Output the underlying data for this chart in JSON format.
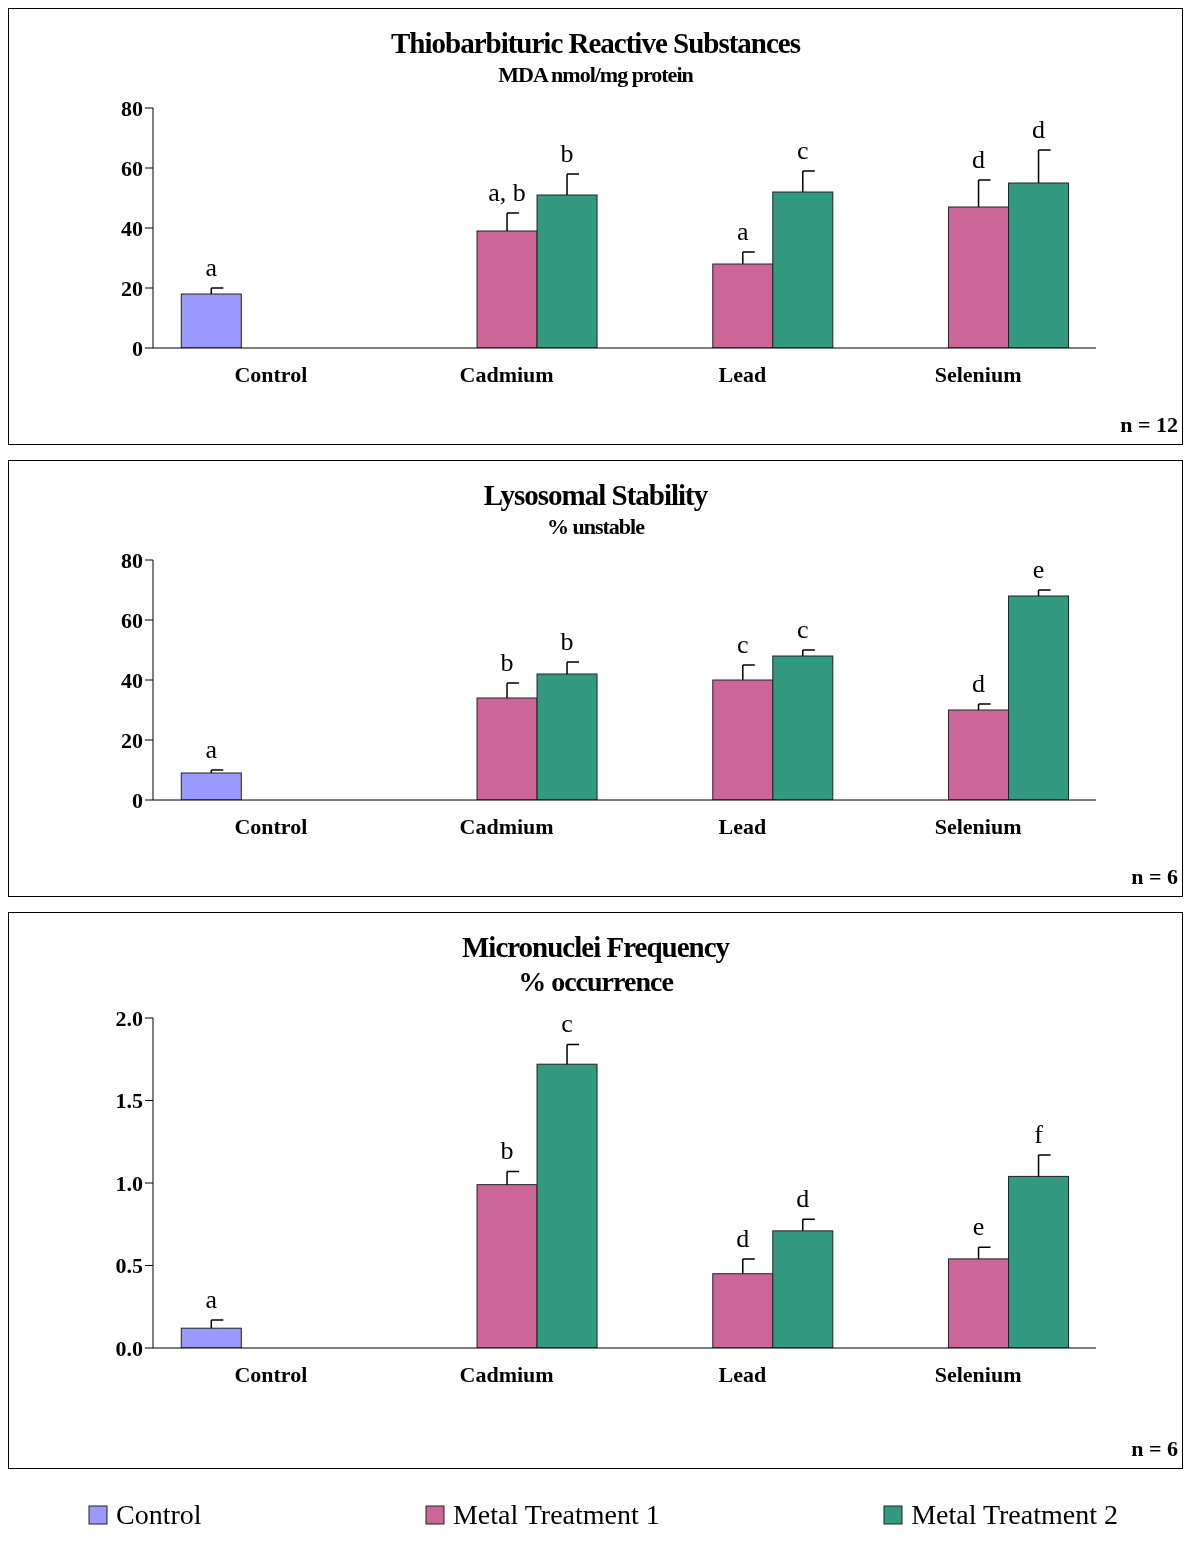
{
  "chart_data": [
    {
      "type": "bar",
      "title": "Thiobarbituric Reactive Substances",
      "subtitle": "MDA nmol/mg protein",
      "categories": [
        "Control",
        "Cadmium",
        "Lead",
        "Selenium"
      ],
      "ylim": [
        0,
        80
      ],
      "yticks": [
        0,
        20,
        40,
        60,
        80
      ],
      "annotations": [
        "n = 12"
      ],
      "series": [
        {
          "color": "#9999ff",
          "values": [
            18,
            0,
            0,
            0
          ],
          "errors": [
            [
              18,
              20
            ],
            null,
            null,
            null
          ],
          "value_labels": [
            "a",
            null,
            null,
            null
          ]
        },
        {
          "color": "#cc6699",
          "values": [
            0,
            39,
            28,
            47
          ],
          "errors": [
            null,
            [
              39,
              45
            ],
            [
              28,
              32
            ],
            [
              47,
              56
            ]
          ],
          "value_labels": [
            null,
            "a, b",
            "a",
            "d"
          ]
        },
        {
          "color": "#339980",
          "values": [
            0,
            51,
            52,
            55
          ],
          "errors": [
            null,
            [
              51,
              58
            ],
            [
              52,
              59
            ],
            [
              55,
              66
            ]
          ],
          "value_labels": [
            null,
            "b",
            "c",
            "d"
          ]
        }
      ]
    },
    {
      "type": "bar",
      "title": "Lysosomal Stability",
      "subtitle": "% unstable",
      "categories": [
        "Control",
        "Cadmium",
        "Lead",
        "Selenium"
      ],
      "ylim": [
        0,
        80
      ],
      "yticks": [
        0,
        20,
        40,
        60,
        80
      ],
      "annotations": [
        "n = 6"
      ],
      "series": [
        {
          "color": "#9999ff",
          "values": [
            9,
            0,
            0,
            0
          ],
          "errors": [
            [
              9,
              10
            ],
            null,
            null,
            null
          ],
          "value_labels": [
            "a",
            null,
            null,
            null
          ]
        },
        {
          "color": "#cc6699",
          "values": [
            0,
            34,
            40,
            30
          ],
          "errors": [
            null,
            [
              34,
              39
            ],
            [
              40,
              45
            ],
            [
              30,
              32
            ]
          ],
          "value_labels": [
            null,
            "b",
            "c",
            "d"
          ]
        },
        {
          "color": "#339980",
          "values": [
            0,
            42,
            48,
            68
          ],
          "errors": [
            null,
            [
              42,
              46
            ],
            [
              48,
              50
            ],
            [
              68,
              70
            ]
          ],
          "value_labels": [
            null,
            "b",
            "c",
            "e"
          ]
        }
      ]
    },
    {
      "type": "bar",
      "title": "Micronuclei Frequency",
      "subtitle": "% occurrence",
      "categories": [
        "Control",
        "Cadmium",
        "Lead",
        "Selenium"
      ],
      "ylim": [
        0,
        2
      ],
      "yticks": [
        {
          "value": 0,
          "label": "0.0"
        },
        {
          "value": 0.5,
          "label": "0.5"
        },
        {
          "value": 1,
          "label": "1.0"
        },
        {
          "value": 1.5,
          "label": "1.5"
        },
        {
          "value": 2,
          "label": "2.0"
        }
      ],
      "annotations": [
        "n = 6"
      ],
      "legend": "bottom",
      "series": [
        {
          "name": "Control",
          "color": "#9999ff",
          "values": [
            0.12,
            0,
            0,
            0
          ],
          "errors": [
            [
              0.12,
              0.17
            ],
            null,
            null,
            null
          ],
          "value_labels": [
            "a",
            null,
            null,
            null
          ]
        },
        {
          "name": "Metal Treatment 1",
          "color": "#cc6699",
          "values": [
            0,
            0.99,
            0.45,
            0.54
          ],
          "errors": [
            null,
            [
              0.99,
              1.07
            ],
            [
              0.45,
              0.54
            ],
            [
              0.54,
              0.61
            ]
          ],
          "value_labels": [
            null,
            "b",
            "d",
            "e"
          ]
        },
        {
          "name": "Metal Treatment 2",
          "color": "#339980",
          "values": [
            0,
            1.72,
            0.71,
            1.04
          ],
          "errors": [
            null,
            [
              1.72,
              1.84
            ],
            [
              0.71,
              0.78
            ],
            [
              1.04,
              1.17
            ]
          ],
          "value_labels": [
            null,
            "c",
            "d",
            "f"
          ]
        }
      ]
    }
  ]
}
